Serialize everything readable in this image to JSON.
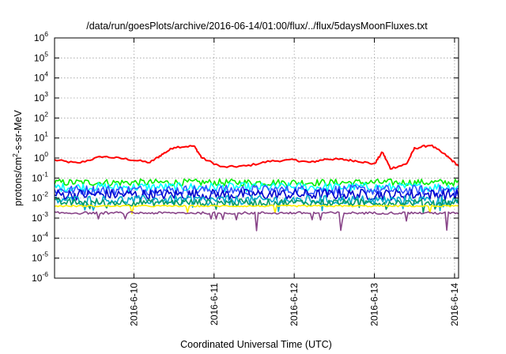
{
  "chart_data": {
    "type": "line",
    "title": "/data/run/goesPlots/archive/2016-06-14/01:00/flux/../flux/5daysMoonFluxes.txt",
    "xlabel": "Coordinated Universal Time (UTC)",
    "ylabel": {
      "prefix": "protons/cm",
      "superscript": "2",
      "suffix": "-s-sr-MeV"
    },
    "yscale": "log",
    "ylim": [
      1e-06,
      1000000.0
    ],
    "y_tick_labels": [
      {
        "base": "10",
        "exp": "-6"
      },
      {
        "base": "10",
        "exp": "-5"
      },
      {
        "base": "10",
        "exp": "-4"
      },
      {
        "base": "10",
        "exp": "-3"
      },
      {
        "base": "10",
        "exp": "-2"
      },
      {
        "base": "10",
        "exp": "-1"
      },
      {
        "base": "10",
        "exp": "0"
      },
      {
        "base": "10",
        "exp": "1"
      },
      {
        "base": "10",
        "exp": "2"
      },
      {
        "base": "10",
        "exp": "3"
      },
      {
        "base": "10",
        "exp": "4"
      },
      {
        "base": "10",
        "exp": "5"
      },
      {
        "base": "10",
        "exp": "6"
      }
    ],
    "x_tick_labels": [
      "2016-6-10",
      "2016-6-11",
      "2016-6-12",
      "2016-6-13",
      "2016-6-14"
    ],
    "x_tick_values": [
      1,
      2,
      3,
      4,
      5
    ],
    "xlim": [
      0.01,
      5.05
    ],
    "grid": true,
    "legend": "none",
    "series": [
      {
        "color": "#ff0000",
        "base": 0.6,
        "noise": 0.25,
        "points": [
          [
            0.01,
            0.8
          ],
          [
            0.3,
            0.55
          ],
          [
            0.6,
            1.2
          ],
          [
            0.9,
            0.9
          ],
          [
            1.2,
            0.6
          ],
          [
            1.35,
            1.5
          ],
          [
            1.5,
            3.5
          ],
          [
            1.75,
            4.0
          ],
          [
            1.85,
            1.0
          ],
          [
            2.1,
            0.35
          ],
          [
            2.4,
            0.4
          ],
          [
            2.7,
            0.7
          ],
          [
            3.0,
            0.8
          ],
          [
            3.2,
            0.6
          ],
          [
            3.4,
            0.9
          ],
          [
            3.6,
            0.85
          ],
          [
            3.8,
            0.7
          ],
          [
            4.0,
            0.5
          ],
          [
            4.1,
            2.0
          ],
          [
            4.2,
            0.3
          ],
          [
            4.4,
            0.5
          ],
          [
            4.5,
            3.0
          ],
          [
            4.7,
            4.5
          ],
          [
            4.9,
            1.3
          ],
          [
            5.05,
            0.4
          ]
        ]
      },
      {
        "color": "#00ee00",
        "base": 0.06,
        "noise": 0.35
      },
      {
        "color": "#00ffff",
        "base": 0.035,
        "noise": 0.45
      },
      {
        "color": "#3355ff",
        "base": 0.025,
        "noise": 0.5
      },
      {
        "color": "#0000cc",
        "base": 0.015,
        "noise": 0.55
      },
      {
        "color": "#00aacc",
        "base": 0.008,
        "noise": 0.45
      },
      {
        "color": "#009966",
        "base": 0.006,
        "noise": 0.35
      },
      {
        "color": "#ffee00",
        "base": 0.004,
        "noise": 0.08
      },
      {
        "color": "#884488",
        "base": 0.0018,
        "noise": 0.12
      }
    ]
  }
}
